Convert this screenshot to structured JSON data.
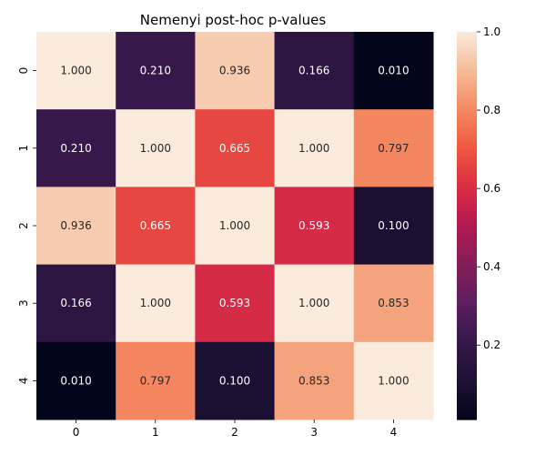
{
  "chart_data": {
    "type": "heatmap",
    "title": "Nemenyi post-hoc p-values",
    "xlabel": "",
    "ylabel": "",
    "x_categories": [
      "0",
      "1",
      "2",
      "3",
      "4"
    ],
    "y_categories": [
      "0",
      "1",
      "2",
      "3",
      "4"
    ],
    "values": [
      [
        1.0,
        0.21,
        0.936,
        0.166,
        0.01
      ],
      [
        0.21,
        1.0,
        0.665,
        1.0,
        0.797
      ],
      [
        0.936,
        0.665,
        1.0,
        0.593,
        0.1
      ],
      [
        0.166,
        1.0,
        0.593,
        1.0,
        0.853
      ],
      [
        0.01,
        0.797,
        0.1,
        0.853,
        1.0
      ]
    ],
    "annotation_format": "0.000",
    "colormap": "rocket",
    "vmin": 0.01,
    "vmax": 1.0,
    "colorbar_ticks": [
      0.2,
      0.4,
      0.6,
      0.8,
      1.0
    ],
    "colorbar_tick_labels": [
      "0.2",
      "0.4",
      "0.6",
      "0.8",
      "1.0"
    ],
    "grid": false,
    "legend": "colorbar-right"
  }
}
